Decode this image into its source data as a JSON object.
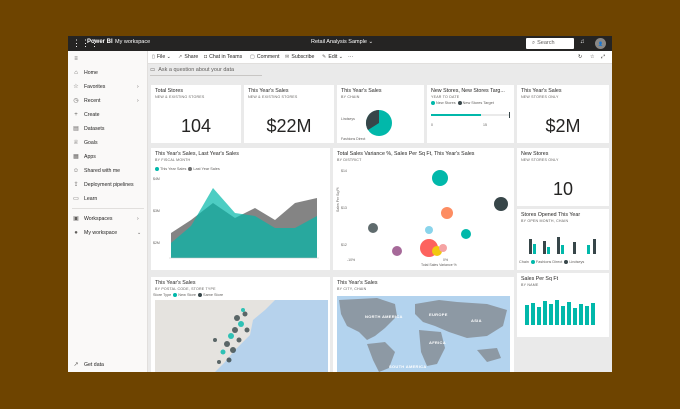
{
  "topbar": {
    "brand": "Power BI",
    "workspace": "My workspace",
    "report_title": "Retail Analysis Sample",
    "search_placeholder": "Search"
  },
  "sidebar": {
    "items": [
      {
        "label": "Home",
        "icon": "home-icon"
      },
      {
        "label": "Favorites",
        "icon": "star-icon"
      },
      {
        "label": "Recent",
        "icon": "clock-icon"
      },
      {
        "label": "Create",
        "icon": "plus-icon"
      },
      {
        "label": "Datasets",
        "icon": "database-icon"
      },
      {
        "label": "Goals",
        "icon": "trophy-icon"
      },
      {
        "label": "Apps",
        "icon": "apps-icon"
      },
      {
        "label": "Shared with me",
        "icon": "person-icon"
      },
      {
        "label": "Deployment pipelines",
        "icon": "rocket-icon"
      },
      {
        "label": "Learn",
        "icon": "book-icon"
      },
      {
        "label": "Workspaces",
        "icon": "workspaces-icon"
      },
      {
        "label": "My workspace",
        "icon": "avatar-icon"
      }
    ],
    "footer": "Get data"
  },
  "commandbar": {
    "file": "File",
    "share": "Share",
    "chat": "Chat in Teams",
    "comment": "Comment",
    "subscribe": "Subscribe",
    "edit": "Edit",
    "more": "···"
  },
  "qa_placeholder": "Ask a question about your data",
  "tiles": {
    "total_stores": {
      "title": "Total Stores",
      "subtitle": "NEW & EXISTING STORES",
      "value": "104"
    },
    "this_year_sales_a": {
      "title": "This Year's Sales",
      "subtitle": "NEW & EXISTING STORES",
      "value": "$22M"
    },
    "this_year_sales_chain": {
      "title": "This Year's Sales",
      "subtitle": "BY CHAIN",
      "labels": [
        "Lindseys",
        "Fashions Direct"
      ]
    },
    "new_stores_target": {
      "title": "New Stores, New Stores Targ...",
      "subtitle": "YEAR TO DATE",
      "legend": [
        "New Stores",
        "New Stores Target"
      ],
      "axis": [
        "0",
        "15"
      ]
    },
    "this_year_sales_new": {
      "title": "This Year's Sales",
      "subtitle": "NEW STORES ONLY",
      "value": "$2M"
    },
    "sales_fiscal_month": {
      "title": "This Year's Sales, Last Year's Sales",
      "subtitle": "BY FISCAL MONTH",
      "legend": [
        "This Year Sales",
        "Last Year Sales"
      ],
      "yticks": [
        "$4M",
        "$3M",
        "$2M"
      ]
    },
    "variance": {
      "title": "Total Sales Variance %, Sales Per Sq Ft, This Year's Sales",
      "subtitle": "BY DISTRICT",
      "ylabel": "Sales Per Sq Ft",
      "xlabel": "Total Sales Variance %",
      "yticks": [
        "$14",
        "$13",
        "$12"
      ],
      "xticks": [
        "-10%",
        "0%"
      ]
    },
    "new_stores": {
      "title": "New Stores",
      "subtitle": "NEW STORES ONLY",
      "value": "10"
    },
    "stores_opened": {
      "title": "Stores Opened This Year",
      "subtitle": "BY OPEN MONTH, CHAIN",
      "legend_label": "Chain",
      "legend": [
        "Fashions Direct",
        "Lindseys"
      ]
    },
    "sales_postal": {
      "title": "This Year's Sales",
      "subtitle": "BY POSTAL CODE, STORE TYPE",
      "legend_label": "Store Type",
      "legend": [
        "New Store",
        "Same Store"
      ]
    },
    "sales_city": {
      "title": "This Year's Sales",
      "subtitle": "BY CITY, CHAIN",
      "map_labels": [
        "NORTH AMERICA",
        "EUROPE",
        "ASIA",
        "AFRICA",
        "SOUTH AMERICA"
      ]
    },
    "sales_sqft": {
      "title": "Sales Per Sq Ft",
      "subtitle": "BY NAME"
    }
  },
  "colors": {
    "teal": "#01b8aa",
    "dark": "#374649",
    "gray": "#6e6e6e",
    "salmon": "#fd625e",
    "orange": "#f2c80f",
    "pink": "#f5a3a3",
    "purple": "#8ad4eb"
  }
}
